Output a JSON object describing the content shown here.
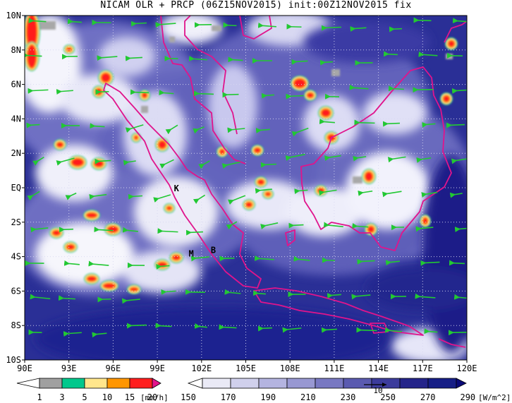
{
  "title": "NICAM OLR + PRCP (06Z15NOV2015) init:00Z12NOV2015 fix",
  "map": {
    "lat_labels": [
      "10N",
      "8N",
      "6N",
      "4N",
      "2N",
      "EQ",
      "2S",
      "4S",
      "6S",
      "8S",
      "10S"
    ],
    "lon_labels": [
      "90E",
      "93E",
      "96E",
      "99E",
      "102E",
      "105E",
      "108E",
      "111E",
      "114E",
      "117E",
      "120E"
    ],
    "places": [
      {
        "name": "K",
        "lon": 100.3,
        "lat": -0.2
      },
      {
        "name": "M",
        "lon": 101.3,
        "lat": -4.0
      },
      {
        "name": "B",
        "lon": 102.8,
        "lat": -3.8
      }
    ],
    "ocean_color": "#161e86",
    "coast_color": "#e0148c",
    "vector_color": "#22c833",
    "grid_color": "#d8d8f0"
  },
  "precip_legend": {
    "values": [
      "1",
      "3",
      "5",
      "10",
      "15",
      "20"
    ],
    "unit": "[mm/h]",
    "colors": [
      "#ffffff",
      "#a0a0a0",
      "#00c88c",
      "#ffe68c",
      "#ff9600",
      "#ff1e1e",
      "#e4148c"
    ]
  },
  "olr_legend": {
    "values": [
      "150",
      "170",
      "190",
      "210",
      "230",
      "250",
      "270",
      "290"
    ],
    "unit": "[W/m^2]",
    "colors": [
      "#ffffff",
      "#eaeaf6",
      "#d0d0ec",
      "#b4b4e0",
      "#9898d2",
      "#7878c2",
      "#5a5ab0",
      "#3c3c9c",
      "#24248a",
      "#161e86",
      "#0a0a78"
    ],
    "vector_ref": "10"
  }
}
